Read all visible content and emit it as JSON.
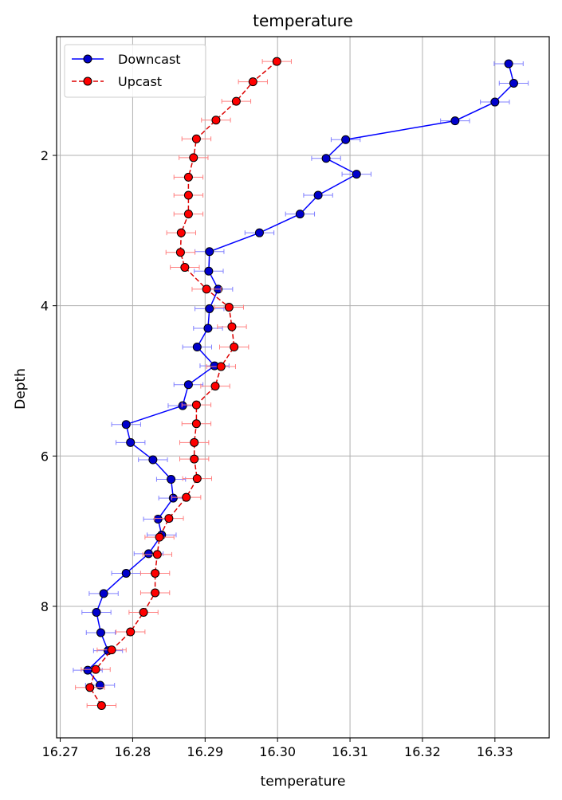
{
  "chart_data": {
    "type": "line",
    "title": "temperature",
    "xlabel": "temperature",
    "ylabel": "Depth",
    "xlim": [
      16.2695,
      16.3375
    ],
    "ylim": [
      9.75,
      0.42
    ],
    "y_inverted": true,
    "grid": true,
    "legend_position": "top-left",
    "x_ticks": [
      "16.27",
      "16.28",
      "16.29",
      "16.30",
      "16.31",
      "16.32",
      "16.33"
    ],
    "x_tick_values": [
      16.27,
      16.28,
      16.29,
      16.3,
      16.31,
      16.32,
      16.33
    ],
    "y_ticks": [
      "2",
      "4",
      "6",
      "8"
    ],
    "y_tick_values": [
      2,
      4,
      6,
      8
    ],
    "series": [
      {
        "name": "Downcast",
        "line_color": "#0000ff",
        "marker_color": "#0000cc",
        "dash": "solid",
        "error_color": "#8080ff",
        "x_err": 0.002,
        "points": [
          [
            16.3319,
            0.78
          ],
          [
            16.3326,
            1.04
          ],
          [
            16.33,
            1.29
          ],
          [
            16.3245,
            1.54
          ],
          [
            16.3094,
            1.79
          ],
          [
            16.3067,
            2.04
          ],
          [
            16.3109,
            2.25
          ],
          [
            16.3056,
            2.53
          ],
          [
            16.3031,
            2.78
          ],
          [
            16.2975,
            3.03
          ],
          [
            16.2906,
            3.28
          ],
          [
            16.2905,
            3.54
          ],
          [
            16.2918,
            3.78
          ],
          [
            16.2906,
            4.04
          ],
          [
            16.2904,
            4.3
          ],
          [
            16.2889,
            4.55
          ],
          [
            16.2913,
            4.8
          ],
          [
            16.2877,
            5.05
          ],
          [
            16.2869,
            5.33
          ],
          [
            16.2791,
            5.58
          ],
          [
            16.2797,
            5.82
          ],
          [
            16.2828,
            6.05
          ],
          [
            16.2853,
            6.31
          ],
          [
            16.2856,
            6.56
          ],
          [
            16.2835,
            6.84
          ],
          [
            16.284,
            7.05
          ],
          [
            16.2822,
            7.3
          ],
          [
            16.2791,
            7.56
          ],
          [
            16.276,
            7.83
          ],
          [
            16.275,
            8.08
          ],
          [
            16.2756,
            8.35
          ],
          [
            16.2766,
            8.59
          ],
          [
            16.2738,
            8.85
          ],
          [
            16.2755,
            9.05
          ]
        ]
      },
      {
        "name": "Upcast",
        "line_color": "#dd0000",
        "marker_color": "#ff0000",
        "dash": "dashed",
        "error_color": "#ff8080",
        "x_err": 0.002,
        "points": [
          [
            16.2999,
            0.75
          ],
          [
            16.2966,
            1.02
          ],
          [
            16.2943,
            1.28
          ],
          [
            16.2915,
            1.53
          ],
          [
            16.2888,
            1.78
          ],
          [
            16.2884,
            2.03
          ],
          [
            16.2877,
            2.29
          ],
          [
            16.2877,
            2.53
          ],
          [
            16.2877,
            2.78
          ],
          [
            16.2867,
            3.03
          ],
          [
            16.2866,
            3.29
          ],
          [
            16.2872,
            3.49
          ],
          [
            16.2902,
            3.78
          ],
          [
            16.2933,
            4.02
          ],
          [
            16.2937,
            4.28
          ],
          [
            16.294,
            4.55
          ],
          [
            16.2922,
            4.81
          ],
          [
            16.2914,
            5.07
          ],
          [
            16.2888,
            5.32
          ],
          [
            16.2888,
            5.57
          ],
          [
            16.2885,
            5.82
          ],
          [
            16.2885,
            6.04
          ],
          [
            16.2889,
            6.3
          ],
          [
            16.2874,
            6.55
          ],
          [
            16.285,
            6.83
          ],
          [
            16.2837,
            7.08
          ],
          [
            16.2834,
            7.31
          ],
          [
            16.2831,
            7.56
          ],
          [
            16.2831,
            7.82
          ],
          [
            16.2815,
            8.08
          ],
          [
            16.2797,
            8.34
          ],
          [
            16.2771,
            8.58
          ],
          [
            16.2749,
            8.84
          ],
          [
            16.2741,
            9.08
          ],
          [
            16.2757,
            9.32
          ]
        ]
      }
    ]
  }
}
